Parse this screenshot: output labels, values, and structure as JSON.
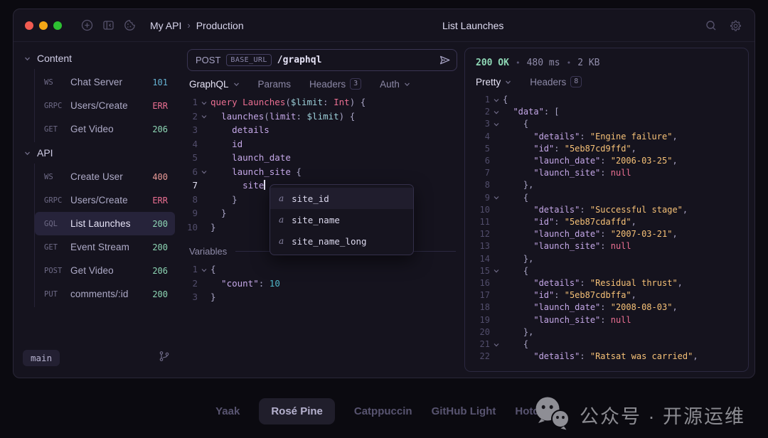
{
  "titlebar": {
    "workspace": "My API",
    "environment": "Production",
    "title": "List Launches"
  },
  "sidebar": {
    "sections": [
      {
        "label": "Content",
        "items": [
          {
            "method": "WS",
            "name": "Chat Server",
            "status": "101",
            "status_color": "#66b3d4"
          },
          {
            "method": "GRPC",
            "name": "Users/Create",
            "status": "ERR",
            "status_color": "#eb6f92"
          },
          {
            "method": "GET",
            "name": "Get Video",
            "status": "206",
            "status_color": "#8ed7b5"
          }
        ]
      },
      {
        "label": "API",
        "items": [
          {
            "method": "WS",
            "name": "Create User",
            "status": "400",
            "status_color": "#ea9a97"
          },
          {
            "method": "GRPC",
            "name": "Users/Create",
            "status": "ERR",
            "status_color": "#eb6f92"
          },
          {
            "method": "GQL",
            "name": "List Launches",
            "status": "200",
            "status_color": "#8ed7b5",
            "selected": true
          },
          {
            "method": "GET",
            "name": "Event Stream",
            "status": "200",
            "status_color": "#8ed7b5"
          },
          {
            "method": "POST",
            "name": "Get Video",
            "status": "206",
            "status_color": "#8ed7b5"
          },
          {
            "method": "PUT",
            "name": "comments/:id",
            "status": "200",
            "status_color": "#8ed7b5"
          }
        ]
      }
    ],
    "branch": "main"
  },
  "request": {
    "method": "POST",
    "base_url": "BASE_URL",
    "path": "/graphql",
    "tabs": [
      {
        "label": "GraphQL",
        "chevron": true,
        "active": true
      },
      {
        "label": "Params"
      },
      {
        "label": "Headers",
        "badge": "3"
      },
      {
        "label": "Auth",
        "chevron": true
      }
    ],
    "query_lines": [
      {
        "n": "1",
        "fold": true,
        "tokens": [
          [
            "kw",
            "query Launches"
          ],
          [
            "punc",
            "("
          ],
          [
            "var",
            "$limit"
          ],
          [
            "punc",
            ": "
          ],
          [
            "kw",
            "Int"
          ],
          [
            "punc",
            ") {"
          ]
        ]
      },
      {
        "n": "2",
        "fold": true,
        "tokens": [
          [
            "punc",
            "  "
          ],
          [
            "field",
            "launches"
          ],
          [
            "punc",
            "("
          ],
          [
            "field",
            "limit"
          ],
          [
            "punc",
            ": "
          ],
          [
            "var",
            "$limit"
          ],
          [
            "punc",
            ") {"
          ]
        ]
      },
      {
        "n": "3",
        "tokens": [
          [
            "field",
            "    details"
          ]
        ]
      },
      {
        "n": "4",
        "tokens": [
          [
            "field",
            "    id"
          ]
        ]
      },
      {
        "n": "5",
        "tokens": [
          [
            "field",
            "    launch_date"
          ]
        ]
      },
      {
        "n": "6",
        "fold": true,
        "tokens": [
          [
            "field",
            "    launch_site "
          ],
          [
            "punc",
            "{"
          ]
        ]
      },
      {
        "n": "7",
        "current": true,
        "tokens": [
          [
            "field",
            "      site"
          ],
          [
            "cursor",
            ""
          ]
        ]
      },
      {
        "n": "8",
        "tokens": [
          [
            "punc",
            "    }"
          ]
        ]
      },
      {
        "n": "9",
        "tokens": [
          [
            "punc",
            "  }"
          ]
        ]
      },
      {
        "n": "10",
        "tokens": [
          [
            "punc",
            "}"
          ]
        ]
      }
    ],
    "autocomplete": {
      "icon": "a",
      "items": [
        "site_id",
        "site_name",
        "site_name_long"
      ],
      "selected": "site_id"
    },
    "variables_label": "Variables",
    "variables_lines": [
      {
        "n": "1",
        "fold": true,
        "tokens": [
          [
            "punc",
            "{"
          ]
        ]
      },
      {
        "n": "2",
        "tokens": [
          [
            "key",
            "  \"count\""
          ],
          [
            "punc",
            ": "
          ],
          [
            "num",
            "10"
          ]
        ]
      },
      {
        "n": "3",
        "tokens": [
          [
            "punc",
            "}"
          ]
        ]
      }
    ]
  },
  "response": {
    "status": "200 OK",
    "sep": "•",
    "time": "480 ms",
    "size": "2 KB",
    "tabs": [
      {
        "label": "Pretty",
        "chevron": true,
        "active": true
      },
      {
        "label": "Headers",
        "badge": "8"
      }
    ],
    "json_lines": [
      {
        "n": "1",
        "fold": true,
        "tokens": [
          [
            "punc",
            "{"
          ]
        ]
      },
      {
        "n": "2",
        "fold": true,
        "tokens": [
          [
            "punc",
            "  "
          ],
          [
            "key",
            "\"data\""
          ],
          [
            "punc",
            ": ["
          ]
        ]
      },
      {
        "n": "3",
        "fold": true,
        "tokens": [
          [
            "punc",
            "    {"
          ]
        ]
      },
      {
        "n": "4",
        "tokens": [
          [
            "punc",
            "      "
          ],
          [
            "key",
            "\"details\""
          ],
          [
            "punc",
            ": "
          ],
          [
            "str",
            "\"Engine failure\""
          ],
          [
            "punc",
            ","
          ]
        ]
      },
      {
        "n": "5",
        "tokens": [
          [
            "punc",
            "      "
          ],
          [
            "key",
            "\"id\""
          ],
          [
            "punc",
            ": "
          ],
          [
            "str",
            "\"5eb87cd9ffd\""
          ],
          [
            "punc",
            ","
          ]
        ]
      },
      {
        "n": "6",
        "tokens": [
          [
            "punc",
            "      "
          ],
          [
            "key",
            "\"launch_date\""
          ],
          [
            "punc",
            ": "
          ],
          [
            "str",
            "\"2006-03-25\""
          ],
          [
            "punc",
            ","
          ]
        ]
      },
      {
        "n": "7",
        "tokens": [
          [
            "punc",
            "      "
          ],
          [
            "key",
            "\"launch_site\""
          ],
          [
            "punc",
            ": "
          ],
          [
            "kw",
            "null"
          ]
        ]
      },
      {
        "n": "8",
        "tokens": [
          [
            "punc",
            "    },"
          ]
        ]
      },
      {
        "n": "9",
        "fold": true,
        "tokens": [
          [
            "punc",
            "    {"
          ]
        ]
      },
      {
        "n": "10",
        "tokens": [
          [
            "punc",
            "      "
          ],
          [
            "key",
            "\"details\""
          ],
          [
            "punc",
            ": "
          ],
          [
            "str",
            "\"Successful stage\""
          ],
          [
            "punc",
            ","
          ]
        ]
      },
      {
        "n": "11",
        "tokens": [
          [
            "punc",
            "      "
          ],
          [
            "key",
            "\"id\""
          ],
          [
            "punc",
            ": "
          ],
          [
            "str",
            "\"5eb87cdaffd\""
          ],
          [
            "punc",
            ","
          ]
        ]
      },
      {
        "n": "12",
        "tokens": [
          [
            "punc",
            "      "
          ],
          [
            "key",
            "\"launch_date\""
          ],
          [
            "punc",
            ": "
          ],
          [
            "str",
            "\"2007-03-21\""
          ],
          [
            "punc",
            ","
          ]
        ]
      },
      {
        "n": "13",
        "tokens": [
          [
            "punc",
            "      "
          ],
          [
            "key",
            "\"launch_site\""
          ],
          [
            "punc",
            ": "
          ],
          [
            "kw",
            "null"
          ]
        ]
      },
      {
        "n": "14",
        "tokens": [
          [
            "punc",
            "    },"
          ]
        ]
      },
      {
        "n": "15",
        "fold": true,
        "tokens": [
          [
            "punc",
            "    {"
          ]
        ]
      },
      {
        "n": "16",
        "tokens": [
          [
            "punc",
            "      "
          ],
          [
            "key",
            "\"details\""
          ],
          [
            "punc",
            ": "
          ],
          [
            "str",
            "\"Residual thrust\""
          ],
          [
            "punc",
            ","
          ]
        ]
      },
      {
        "n": "17",
        "tokens": [
          [
            "punc",
            "      "
          ],
          [
            "key",
            "\"id\""
          ],
          [
            "punc",
            ": "
          ],
          [
            "str",
            "\"5eb87cdbffa\""
          ],
          [
            "punc",
            ","
          ]
        ]
      },
      {
        "n": "18",
        "tokens": [
          [
            "punc",
            "      "
          ],
          [
            "key",
            "\"launch_date\""
          ],
          [
            "punc",
            ": "
          ],
          [
            "str",
            "\"2008-08-03\""
          ],
          [
            "punc",
            ","
          ]
        ]
      },
      {
        "n": "19",
        "tokens": [
          [
            "punc",
            "      "
          ],
          [
            "key",
            "\"launch_site\""
          ],
          [
            "punc",
            ": "
          ],
          [
            "kw",
            "null"
          ]
        ]
      },
      {
        "n": "20",
        "tokens": [
          [
            "punc",
            "    },"
          ]
        ]
      },
      {
        "n": "21",
        "fold": true,
        "tokens": [
          [
            "punc",
            "    {"
          ]
        ]
      },
      {
        "n": "22",
        "tokens": [
          [
            "punc",
            "      "
          ],
          [
            "key",
            "\"details\""
          ],
          [
            "punc",
            ": "
          ],
          [
            "str",
            "\"Ratsat was carried\""
          ],
          [
            "punc",
            ","
          ]
        ]
      }
    ]
  },
  "footer": {
    "themes": [
      "Yaak",
      "Rosé Pine",
      "Catppuccin",
      "GitHub Light",
      "Hotdog"
    ],
    "selected_theme": "Rosé Pine",
    "watermark": "公众号 · 开源运维"
  },
  "traffic_colors": {
    "close": "#f15b51",
    "minimize": "#f3a816",
    "zoom": "#2dc132"
  }
}
